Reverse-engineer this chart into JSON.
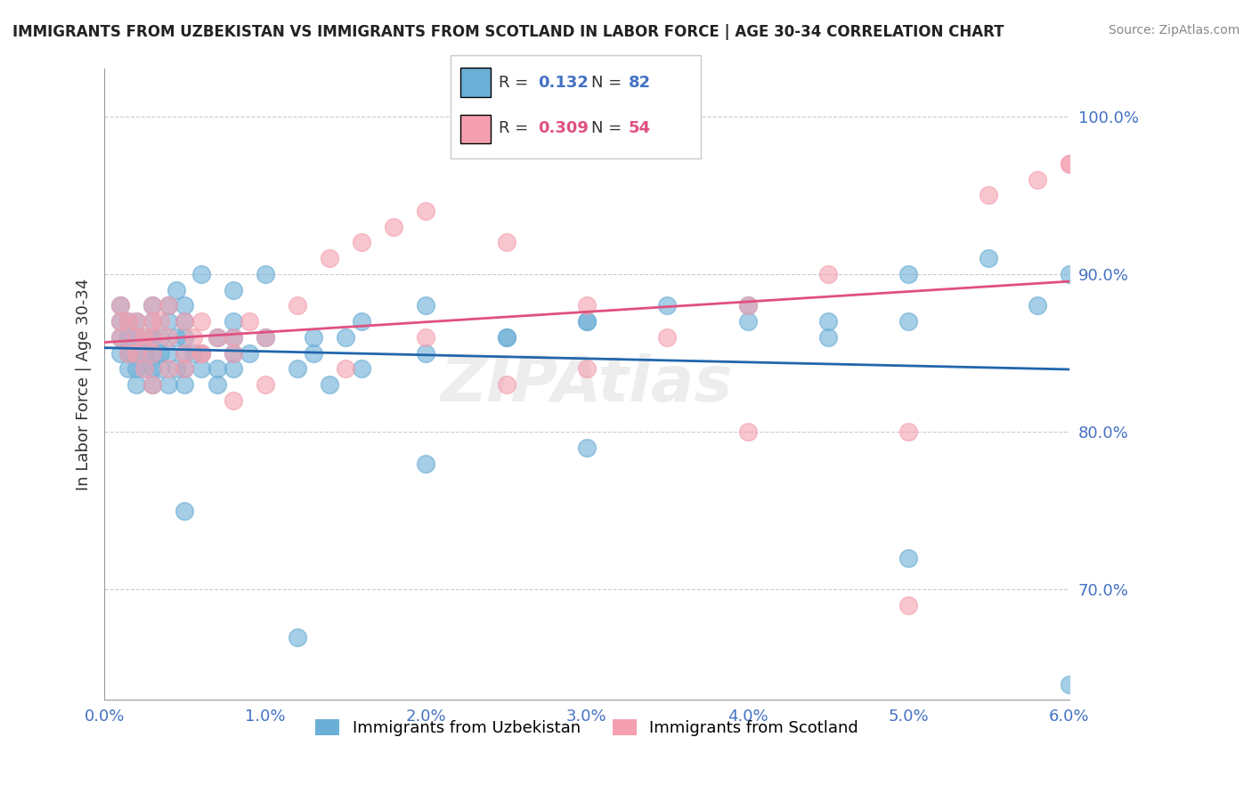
{
  "title": "IMMIGRANTS FROM UZBEKISTAN VS IMMIGRANTS FROM SCOTLAND IN LABOR FORCE | AGE 30-34 CORRELATION CHART",
  "source": "Source: ZipAtlas.com",
  "xlabel": "",
  "ylabel": "In Labor Force | Age 30-34",
  "xlim": [
    0.0,
    0.06
  ],
  "ylim": [
    0.63,
    1.03
  ],
  "yticks": [
    0.7,
    0.8,
    0.9,
    1.0
  ],
  "ytick_labels": [
    "70.0%",
    "80.0%",
    "90.0%",
    "100.0%"
  ],
  "xticks": [
    0.0,
    0.01,
    0.02,
    0.03,
    0.04,
    0.05,
    0.06
  ],
  "xtick_labels": [
    "0.0%",
    "1.0%",
    "2.0%",
    "3.0%",
    "4.0%",
    "5.0%",
    "6.0%"
  ],
  "legend_blue_R": "0.132",
  "legend_blue_N": "82",
  "legend_pink_R": "0.309",
  "legend_pink_N": "54",
  "legend_label_blue": "Immigrants from Uzbekistan",
  "legend_label_pink": "Immigrants from Scotland",
  "blue_color": "#6baed6",
  "pink_color": "#f4a0b0",
  "trend_blue_color": "#2166ac",
  "trend_pink_color": "#e05080",
  "axis_color": "#4472c4",
  "watermark": "ZIPAtlas",
  "blue_x": [
    0.001,
    0.001,
    0.001,
    0.001,
    0.0015,
    0.0015,
    0.0015,
    0.0015,
    0.002,
    0.002,
    0.002,
    0.002,
    0.002,
    0.0025,
    0.0025,
    0.0025,
    0.003,
    0.003,
    0.003,
    0.003,
    0.003,
    0.0035,
    0.0035,
    0.0035,
    0.004,
    0.004,
    0.004,
    0.004,
    0.0045,
    0.0045,
    0.005,
    0.005,
    0.005,
    0.005,
    0.005,
    0.005,
    0.0055,
    0.006,
    0.006,
    0.007,
    0.007,
    0.007,
    0.008,
    0.008,
    0.008,
    0.008,
    0.009,
    0.01,
    0.012,
    0.013,
    0.014,
    0.015,
    0.016,
    0.02,
    0.025,
    0.03,
    0.035,
    0.04,
    0.045,
    0.05,
    0.003,
    0.0045,
    0.006,
    0.008,
    0.01,
    0.013,
    0.016,
    0.02,
    0.025,
    0.03,
    0.04,
    0.045,
    0.05,
    0.055,
    0.058,
    0.06,
    0.005,
    0.012,
    0.02,
    0.03,
    0.05,
    0.06
  ],
  "blue_y": [
    0.85,
    0.87,
    0.88,
    0.86,
    0.84,
    0.86,
    0.87,
    0.85,
    0.83,
    0.85,
    0.86,
    0.84,
    0.87,
    0.84,
    0.85,
    0.86,
    0.83,
    0.84,
    0.85,
    0.86,
    0.87,
    0.84,
    0.85,
    0.86,
    0.83,
    0.85,
    0.87,
    0.88,
    0.84,
    0.86,
    0.83,
    0.85,
    0.86,
    0.87,
    0.88,
    0.84,
    0.85,
    0.84,
    0.85,
    0.83,
    0.86,
    0.84,
    0.85,
    0.87,
    0.86,
    0.84,
    0.85,
    0.86,
    0.84,
    0.85,
    0.83,
    0.86,
    0.84,
    0.85,
    0.86,
    0.87,
    0.88,
    0.87,
    0.86,
    0.87,
    0.88,
    0.89,
    0.9,
    0.89,
    0.9,
    0.86,
    0.87,
    0.88,
    0.86,
    0.87,
    0.88,
    0.87,
    0.9,
    0.91,
    0.88,
    0.9,
    0.75,
    0.67,
    0.78,
    0.79,
    0.72,
    0.64
  ],
  "pink_x": [
    0.001,
    0.001,
    0.001,
    0.0015,
    0.0015,
    0.002,
    0.002,
    0.002,
    0.0025,
    0.0025,
    0.003,
    0.003,
    0.003,
    0.003,
    0.0035,
    0.004,
    0.004,
    0.005,
    0.005,
    0.005,
    0.0055,
    0.006,
    0.006,
    0.007,
    0.008,
    0.008,
    0.009,
    0.01,
    0.012,
    0.014,
    0.016,
    0.018,
    0.02,
    0.025,
    0.03,
    0.035,
    0.04,
    0.045,
    0.05,
    0.003,
    0.004,
    0.006,
    0.008,
    0.01,
    0.015,
    0.02,
    0.025,
    0.03,
    0.04,
    0.05,
    0.055,
    0.058,
    0.06,
    0.06
  ],
  "pink_y": [
    0.87,
    0.88,
    0.86,
    0.85,
    0.87,
    0.86,
    0.87,
    0.85,
    0.84,
    0.86,
    0.85,
    0.87,
    0.86,
    0.88,
    0.87,
    0.86,
    0.88,
    0.84,
    0.87,
    0.85,
    0.86,
    0.85,
    0.87,
    0.86,
    0.86,
    0.85,
    0.87,
    0.86,
    0.88,
    0.91,
    0.92,
    0.93,
    0.94,
    0.92,
    0.88,
    0.86,
    0.88,
    0.9,
    0.8,
    0.83,
    0.84,
    0.85,
    0.82,
    0.83,
    0.84,
    0.86,
    0.83,
    0.84,
    0.8,
    0.69,
    0.95,
    0.96,
    0.97,
    0.97
  ]
}
